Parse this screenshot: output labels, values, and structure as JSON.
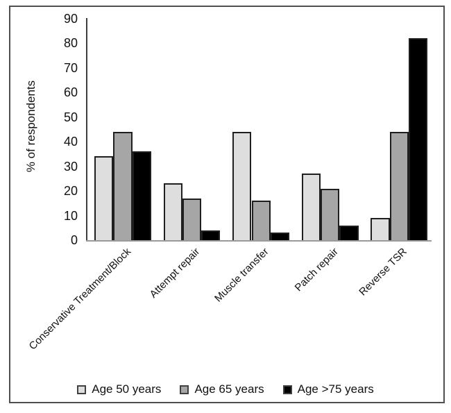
{
  "chart_data": {
    "type": "bar",
    "title": "",
    "xlabel": "",
    "ylabel": "% of respondents",
    "ylim": [
      0,
      90
    ],
    "y_tick_step": 10,
    "grid": false,
    "legend_position": "bottom",
    "categories": [
      "Conservative Treatment/Block",
      "Attempt repair",
      "Muscle transfer",
      "Patch repair",
      "Reverse TSR"
    ],
    "series": [
      {
        "name": "Age 50 years",
        "color": "#dedede",
        "values": [
          34,
          23,
          44,
          27,
          9
        ]
      },
      {
        "name": "Age 65 years",
        "color": "#a6a6a6",
        "values": [
          44,
          17,
          16,
          21,
          44
        ]
      },
      {
        "name": "Age >75 years",
        "color": "#000000",
        "values": [
          36,
          4,
          3,
          6,
          82
        ]
      }
    ],
    "y_tick_labels": [
      "0",
      "10",
      "20",
      "30",
      "40",
      "50",
      "60",
      "70",
      "80",
      "90"
    ],
    "bar_border_color": "#1f1f1f"
  }
}
